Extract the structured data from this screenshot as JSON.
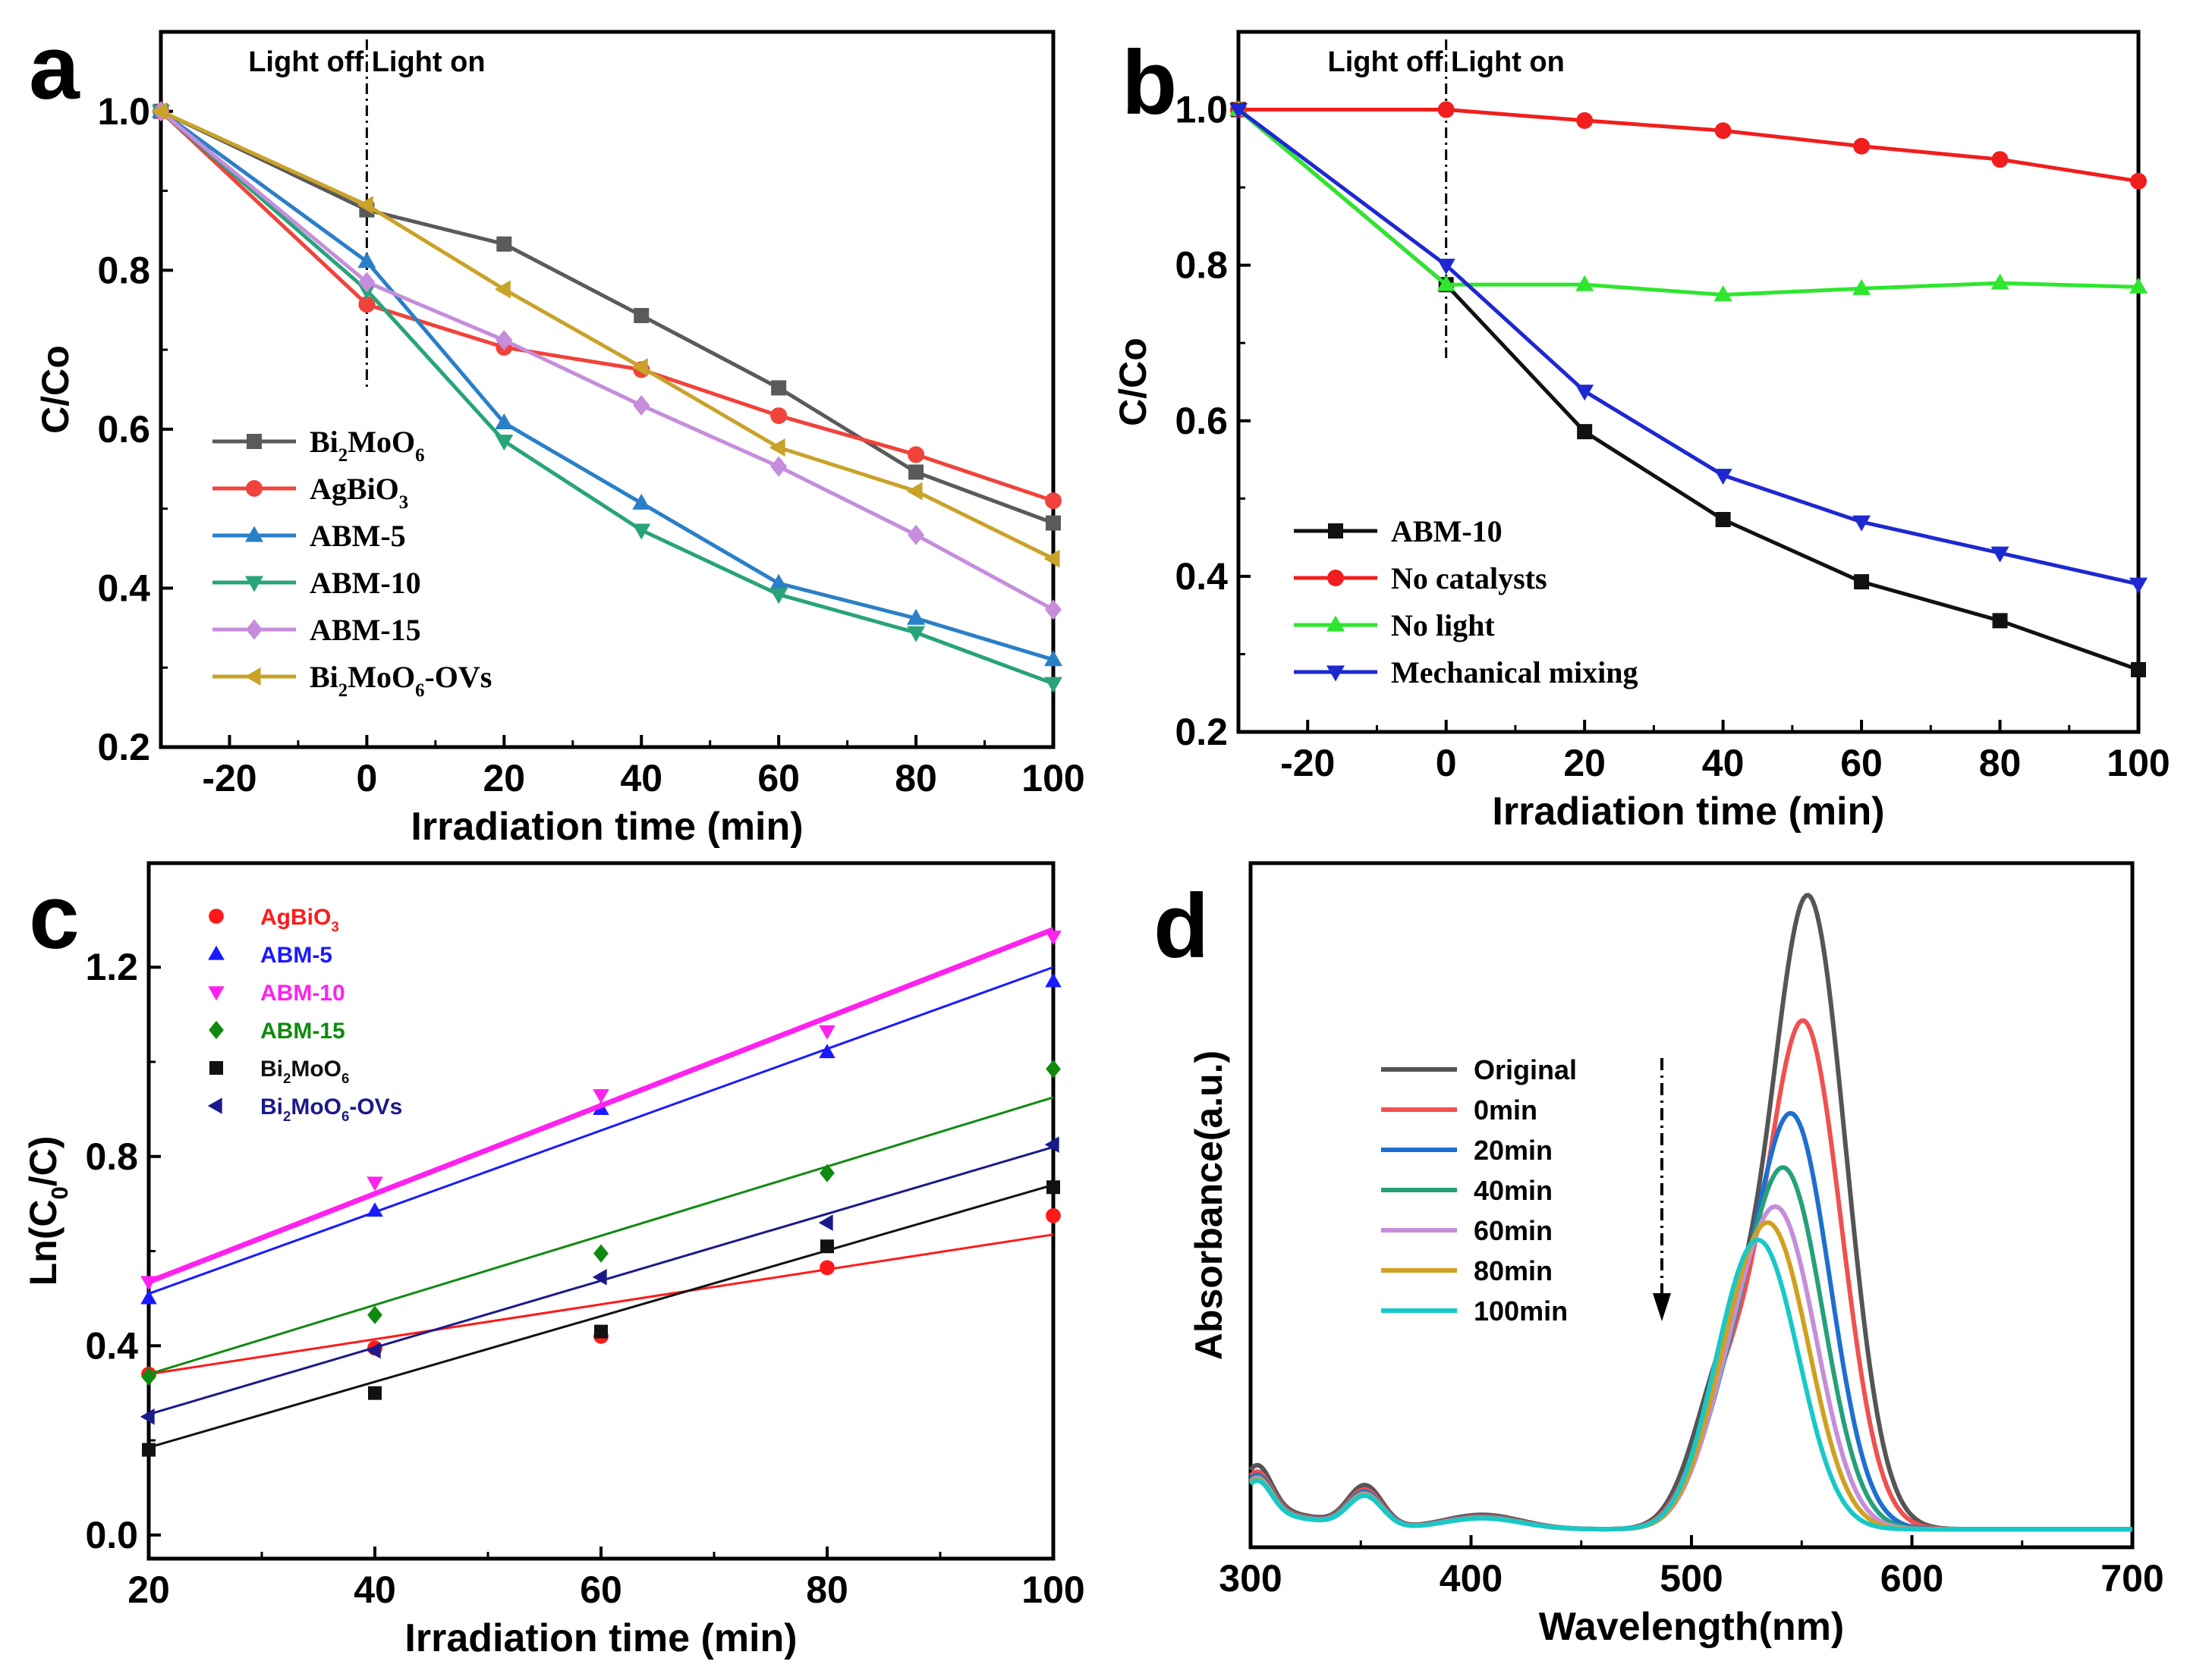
{
  "chart_data": [
    {
      "id": "a",
      "type": "line",
      "panel_label": "a",
      "xlabel": "Irradiation time (min)",
      "ylabel": "C/Co",
      "xlim": [
        -30,
        100
      ],
      "ylim": [
        0.2,
        1.1
      ],
      "xticks": [
        -20,
        0,
        20,
        40,
        60,
        80,
        100
      ],
      "yticks": [
        0.2,
        0.4,
        0.6,
        0.8,
        1.0
      ],
      "xtick_labels": [
        "-20",
        "0",
        "20",
        "40",
        "60",
        "80",
        "100"
      ],
      "ytick_labels": [
        "0.2",
        "0.4",
        "0.6",
        "0.8",
        "1.0"
      ],
      "annotation": "Light off Light on",
      "divider_x": 0,
      "x": [
        -30,
        0,
        20,
        40,
        60,
        80,
        100
      ],
      "series": [
        {
          "name": "Bi2MoO6",
          "label_parts": [
            [
              "Bi",
              ""
            ],
            [
              "2",
              "sub"
            ],
            [
              "MoO",
              ""
            ],
            [
              "6",
              "sub"
            ]
          ],
          "color": "#5a5a5a",
          "marker": "square",
          "values": [
            1.0,
            0.876,
            0.833,
            0.743,
            0.652,
            0.546,
            0.482
          ]
        },
        {
          "name": "AgBiO3",
          "label_parts": [
            [
              "AgBiO",
              ""
            ],
            [
              "3",
              "sub"
            ]
          ],
          "color": "#f0433b",
          "marker": "circle",
          "values": [
            1.0,
            0.757,
            0.703,
            0.675,
            0.617,
            0.568,
            0.51
          ]
        },
        {
          "name": "ABM-5",
          "label_parts": [
            [
              "ABM-5",
              ""
            ]
          ],
          "color": "#2a7fc8",
          "marker": "triangle-up",
          "values": [
            1.0,
            0.811,
            0.608,
            0.507,
            0.406,
            0.362,
            0.31
          ]
        },
        {
          "name": "ABM-10",
          "label_parts": [
            [
              "ABM-10",
              ""
            ]
          ],
          "color": "#28a37a",
          "marker": "triangle-down",
          "values": [
            1.0,
            0.775,
            0.585,
            0.473,
            0.392,
            0.344,
            0.28
          ]
        },
        {
          "name": "ABM-15",
          "label_parts": [
            [
              "ABM-15",
              ""
            ]
          ],
          "color": "#c58ddb",
          "marker": "diamond",
          "values": [
            1.0,
            0.785,
            0.712,
            0.63,
            0.553,
            0.467,
            0.373
          ]
        },
        {
          "name": "Bi2MoO6-OVs",
          "label_parts": [
            [
              "Bi",
              ""
            ],
            [
              "2",
              "sub"
            ],
            [
              "MoO",
              ""
            ],
            [
              "6",
              "sub"
            ],
            [
              "-OVs",
              ""
            ]
          ],
          "color": "#c9a22a",
          "marker": "triangle-left",
          "values": [
            1.0,
            0.882,
            0.776,
            0.678,
            0.577,
            0.522,
            0.437
          ]
        }
      ]
    },
    {
      "id": "b",
      "type": "line",
      "panel_label": "b",
      "xlabel": "Irradiation time (min)",
      "ylabel": "C/Co",
      "xlim": [
        -30,
        100
      ],
      "ylim": [
        0.2,
        1.1
      ],
      "xticks": [
        -20,
        0,
        20,
        40,
        60,
        80,
        100
      ],
      "yticks": [
        0.2,
        0.4,
        0.6,
        0.8,
        1.0
      ],
      "xtick_labels": [
        "-20",
        "0",
        "20",
        "40",
        "60",
        "80",
        "100"
      ],
      "ytick_labels": [
        "0.2",
        "0.4",
        "0.6",
        "0.8",
        "1.0"
      ],
      "annotation": "Light off Light on",
      "divider_x": 0,
      "x": [
        -30,
        0,
        20,
        40,
        60,
        80,
        100
      ],
      "series": [
        {
          "name": "ABM-10",
          "label_parts": [
            [
              "ABM-10",
              ""
            ]
          ],
          "color": "#111111",
          "marker": "square",
          "values": [
            1.0,
            0.775,
            0.586,
            0.473,
            0.393,
            0.343,
            0.28
          ]
        },
        {
          "name": "No catalysts",
          "label_parts": [
            [
              "No catalysts",
              ""
            ]
          ],
          "color": "#f01e1e",
          "marker": "circle",
          "values": [
            1.0,
            1.0,
            0.986,
            0.973,
            0.953,
            0.936,
            0.908
          ]
        },
        {
          "name": "No light",
          "label_parts": [
            [
              "No light",
              ""
            ]
          ],
          "color": "#2ee62e",
          "marker": "triangle-up",
          "values": [
            1.0,
            0.775,
            0.775,
            0.762,
            0.77,
            0.777,
            0.772
          ]
        },
        {
          "name": "Mechanical mixing",
          "label_parts": [
            [
              "Mechanical mixing",
              ""
            ]
          ],
          "color": "#1e28d0",
          "marker": "triangle-down",
          "values": [
            1.0,
            0.8,
            0.638,
            0.53,
            0.47,
            0.43,
            0.39
          ]
        }
      ]
    },
    {
      "id": "c",
      "type": "scatter",
      "panel_label": "c",
      "xlabel": "Irradiation time (min)",
      "ylabel": "Ln(C0/C)",
      "ylabel_parts": [
        [
          "Ln(C",
          ""
        ],
        [
          "0",
          "sub"
        ],
        [
          "/C)",
          ""
        ]
      ],
      "xlim": [
        20,
        100
      ],
      "ylim": [
        -0.05,
        1.42
      ],
      "xticks": [
        20,
        40,
        60,
        80,
        100
      ],
      "yticks": [
        0.0,
        0.4,
        0.8,
        1.2
      ],
      "xtick_labels": [
        "20",
        "40",
        "60",
        "80",
        "100"
      ],
      "ytick_labels": [
        "0.0",
        "0.4",
        "0.8",
        "1.2"
      ],
      "x": [
        20,
        40,
        60,
        80,
        100
      ],
      "series": [
        {
          "name": "AgBiO3",
          "label_parts": [
            [
              "AgBiO",
              ""
            ],
            [
              "3",
              "sub"
            ]
          ],
          "color": "#ff1a1a",
          "marker": "circle",
          "values": [
            0.34,
            0.395,
            0.42,
            0.565,
            0.675
          ],
          "fit": [
            0.34,
            0.635
          ],
          "fit_width": 3
        },
        {
          "name": "ABM-5",
          "label_parts": [
            [
              "ABM-5",
              ""
            ]
          ],
          "color": "#1a1aff",
          "marker": "triangle-up",
          "values": [
            0.5,
            0.685,
            0.9,
            1.02,
            1.17
          ],
          "fit": [
            0.51,
            1.2
          ],
          "fit_width": 3
        },
        {
          "name": "ABM-10",
          "label_parts": [
            [
              "ABM-10",
              ""
            ]
          ],
          "color": "#ff22ee",
          "marker": "triangle-down",
          "values": [
            0.535,
            0.745,
            0.93,
            1.065,
            1.265
          ],
          "fit": [
            0.535,
            1.28
          ],
          "fit_width": 7
        },
        {
          "name": "ABM-15",
          "label_parts": [
            [
              "ABM-15",
              ""
            ]
          ],
          "color": "#108a10",
          "marker": "diamond",
          "values": [
            0.335,
            0.465,
            0.595,
            0.765,
            0.985
          ],
          "fit": [
            0.34,
            0.925
          ],
          "fit_width": 3
        },
        {
          "name": "Bi2MoO6",
          "label_parts": [
            [
              "Bi",
              ""
            ],
            [
              "2",
              "sub"
            ],
            [
              "MoO",
              ""
            ],
            [
              "6",
              "sub"
            ]
          ],
          "color": "#111111",
          "marker": "square",
          "values": [
            0.18,
            0.3,
            0.43,
            0.61,
            0.735
          ],
          "fit": [
            0.185,
            0.74
          ],
          "fit_width": 3
        },
        {
          "name": "Bi2MoO6-OVs",
          "label_parts": [
            [
              "Bi",
              ""
            ],
            [
              "2",
              "sub"
            ],
            [
              "MoO",
              ""
            ],
            [
              "6",
              "sub"
            ],
            [
              "-OVs",
              ""
            ]
          ],
          "color": "#1a1a8a",
          "marker": "triangle-left",
          "values": [
            0.25,
            0.39,
            0.545,
            0.66,
            0.825
          ],
          "fit": [
            0.255,
            0.82
          ],
          "fit_width": 3
        }
      ]
    },
    {
      "id": "d",
      "type": "line",
      "panel_label": "d",
      "xlabel": "Wavelength(nm)",
      "ylabel": "Absorbance(a.u.)",
      "xlim": [
        300,
        700
      ],
      "ylim": [
        -0.05,
        1.85
      ],
      "xticks": [
        300,
        400,
        500,
        600,
        700
      ],
      "xtick_labels": [
        "300",
        "400",
        "500",
        "600",
        "700"
      ],
      "yticks": [],
      "ytick_labels": [],
      "series": [
        {
          "name": "Original",
          "color": "#555555",
          "peak": 1.75,
          "center": 553,
          "baseline": 1.0
        },
        {
          "name": "0min",
          "color": "#f05050",
          "peak": 1.4,
          "center": 551,
          "baseline": 0.9
        },
        {
          "name": "20min",
          "color": "#1e6fd0",
          "peak": 1.13,
          "center": 546,
          "baseline": 0.85
        },
        {
          "name": "40min",
          "color": "#25a07a",
          "peak": 0.97,
          "center": 543,
          "baseline": 0.82
        },
        {
          "name": "60min",
          "color": "#c58ddb",
          "peak": 0.85,
          "center": 540,
          "baseline": 0.8
        },
        {
          "name": "80min",
          "color": "#d0a020",
          "peak": 0.79,
          "center": 537,
          "baseline": 0.78
        },
        {
          "name": "100min",
          "color": "#18c8c8",
          "peak": 0.72,
          "center": 533,
          "baseline": 0.76
        }
      ]
    }
  ]
}
